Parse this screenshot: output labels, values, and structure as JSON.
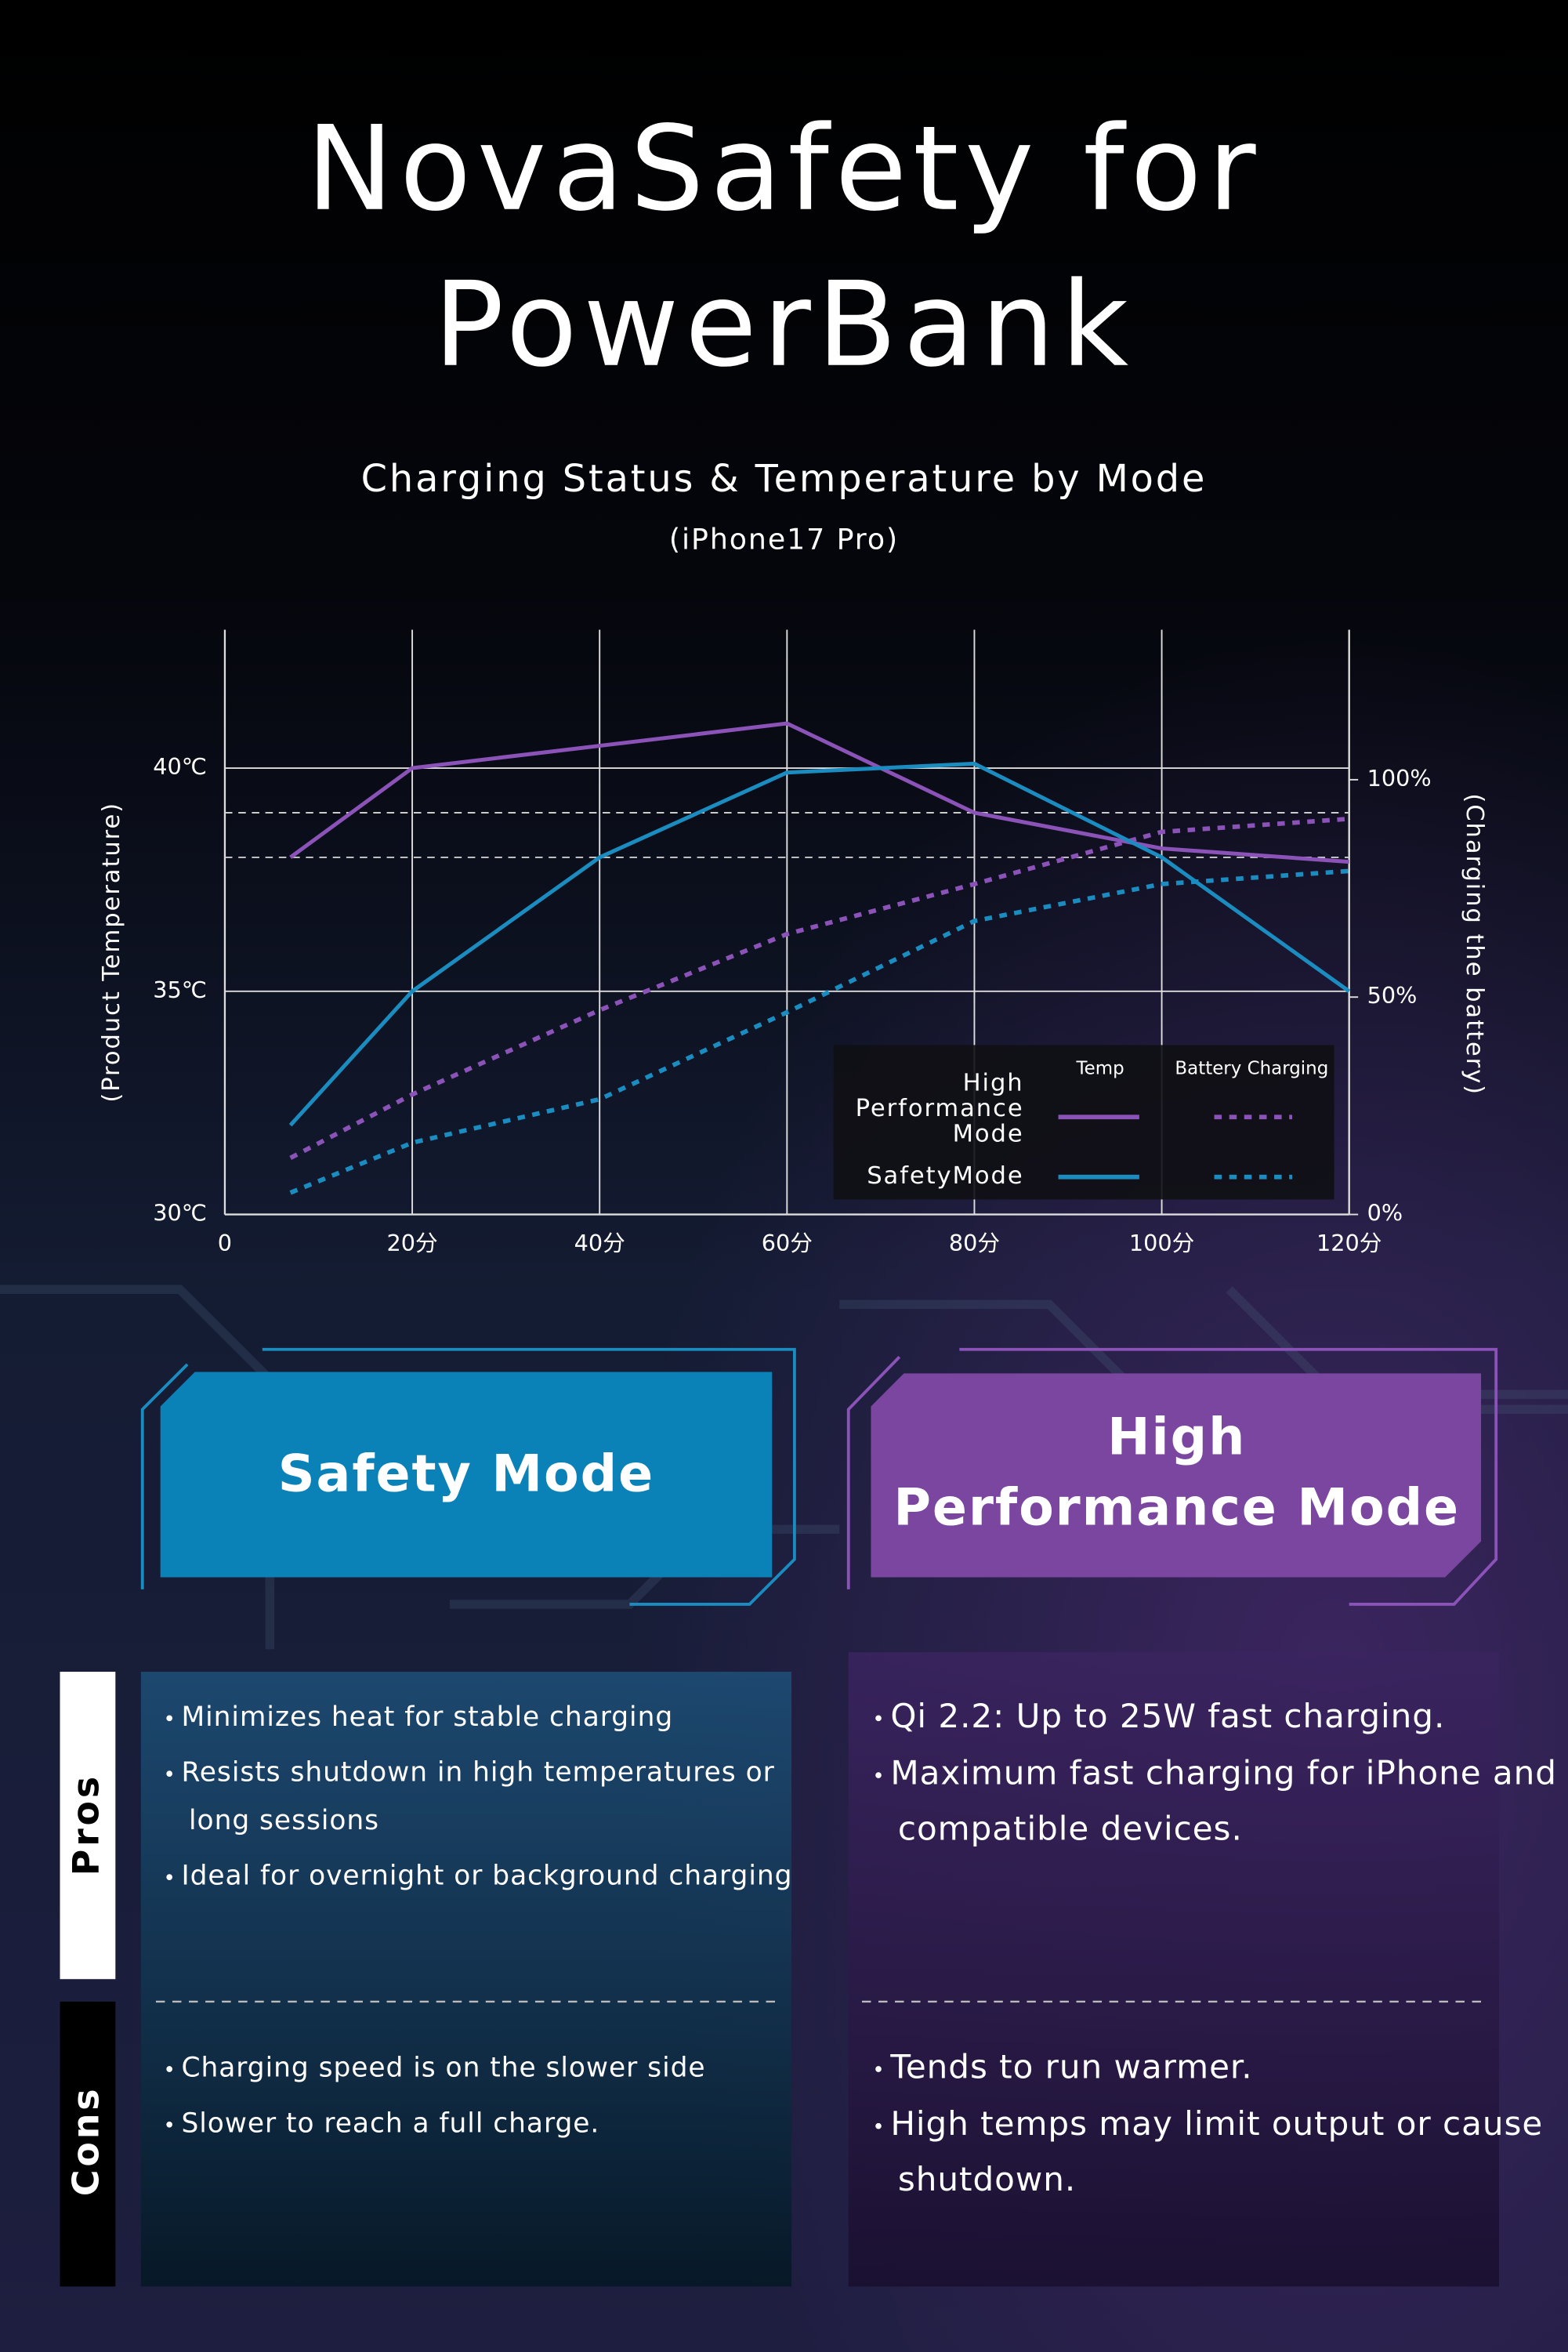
{
  "header": {
    "title_lines": [
      "NovaSafety for",
      "PowerBank"
    ],
    "subtitle": "Charging Status & Temperature by Mode",
    "device": "(iPhone17 Pro)"
  },
  "chart_data": {
    "type": "line",
    "x": [
      7,
      20,
      40,
      60,
      80,
      100,
      120
    ],
    "xlim": [
      0,
      120
    ],
    "xticks": [
      0,
      {
        "value": 20,
        "label": "20分"
      },
      {
        "value": 40,
        "label": "40分"
      },
      {
        "value": 60,
        "label": "60分"
      },
      {
        "value": 80,
        "label": "80分"
      },
      {
        "value": 100,
        "label": "100分"
      },
      {
        "value": 120,
        "label": "120分"
      }
    ],
    "ylim": [
      30,
      43.1
    ],
    "yticks": [
      {
        "value": 30,
        "label": "30℃"
      },
      {
        "value": 35,
        "label": "35℃"
      },
      {
        "value": 40,
        "label": "40℃"
      }
    ],
    "y2lim": [
      0,
      134.5
    ],
    "y2ticks": [
      {
        "value": 0,
        "label": "0%"
      },
      {
        "value": 50,
        "label": "50%"
      },
      {
        "value": 100,
        "label": "100%"
      }
    ],
    "y_label": "(Product Temperature)",
    "y2_label": "(Charging the battery)",
    "grid": true,
    "reference_lines": [
      39,
      38
    ],
    "series": [
      {
        "color": "#8b52b8",
        "dash": false,
        "values": [
          38.0,
          40.0,
          40.5,
          41.0,
          39.0,
          38.2,
          37.9
        ]
      },
      {
        "color": "#8b52b8",
        "dash": true,
        "axis": "y2",
        "values": [
          13,
          27.6,
          47,
          64.5,
          76,
          88,
          91
        ]
      },
      {
        "color": "#1a8cc0",
        "dash": false,
        "values": [
          32.0,
          35.0,
          38.0,
          39.9,
          40.1,
          38.0,
          35.0
        ]
      },
      {
        "color": "#1a8cc0",
        "dash": true,
        "axis": "y2",
        "values": [
          5,
          16.5,
          26.5,
          46.5,
          67.5,
          76,
          79
        ]
      }
    ],
    "legend": {
      "columns": [
        "Temp",
        "Battery Charging"
      ],
      "rows": [
        [
          "High",
          "Performance",
          "Mode"
        ],
        [
          "SafetyMode"
        ]
      ]
    }
  },
  "row_labels": [
    "Pros",
    "Cons"
  ],
  "modes": [
    {
      "label_lines": [
        "Safety Mode"
      ],
      "color": "#0a82b8",
      "pros": [
        [
          "Minimizes heat for stable charging"
        ],
        [
          "Resists shutdown in high temperatures or",
          "long sessions"
        ],
        [
          "Ideal for overnight or background charging"
        ]
      ],
      "cons": [
        [
          "Charging speed is on the slower side"
        ],
        [
          "Slower to reach a full charge."
        ]
      ]
    },
    {
      "label_lines": [
        "High",
        "Performance Mode"
      ],
      "color": "#7b46a0",
      "pros": [
        [
          "Qi 2.2: Up to 25W fast charging."
        ],
        [
          "Maximum fast charging for iPhone and",
          "compatible devices."
        ]
      ],
      "cons": [
        [
          "Tends to run warmer."
        ],
        [
          "High temps may limit output or cause",
          "shutdown."
        ]
      ]
    }
  ]
}
